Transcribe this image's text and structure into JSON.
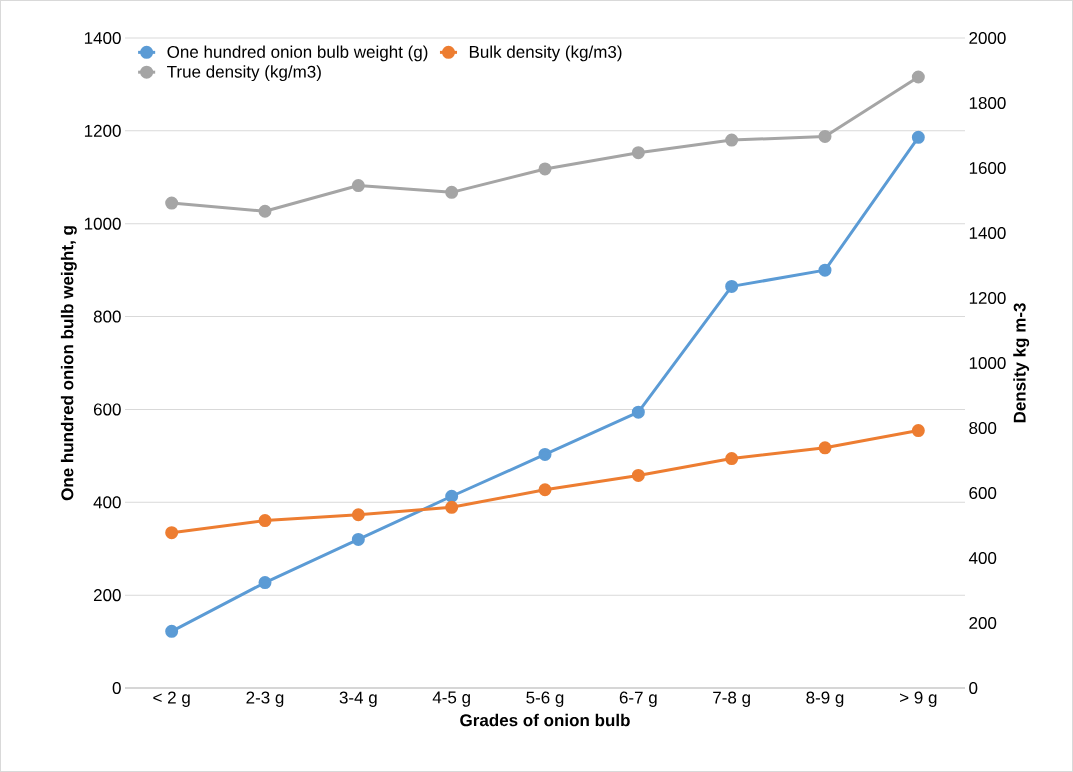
{
  "chart_data": {
    "type": "line",
    "xlabel": "Grades of onion bulb",
    "ylabel": "One hundred onion bulb weight, g",
    "y2label": "Density kg m-3",
    "categories": [
      "< 2 g",
      "2-3 g",
      "3-4 g",
      "4-5 g",
      "5-6 g",
      "6-7 g",
      "7-8 g",
      "8-9 g",
      "> 9 g"
    ],
    "series": [
      {
        "name": "One hundred onion bulb weight (g)",
        "color": "#5b9bd5",
        "values": [
          122,
          227,
          320,
          413,
          503,
          594,
          865,
          900,
          1186
        ]
      },
      {
        "name": "Bulk density   (kg/m3)",
        "color": "#ed7d31",
        "axis": "y2",
        "values": [
          478,
          515,
          533,
          556,
          610,
          654,
          706,
          739,
          792
        ]
      },
      {
        "name": "True density (kg/m3)",
        "color": "#a5a5a5",
        "axis": "y2",
        "values": [
          1492,
          1467,
          1546,
          1525,
          1597,
          1647,
          1686,
          1697,
          1880
        ]
      }
    ],
    "ylim": [
      0,
      1400
    ],
    "yticks": [
      0,
      200,
      400,
      600,
      800,
      1000,
      1200,
      1400
    ],
    "y2lim": [
      0,
      2000
    ],
    "y2ticks": [
      0,
      200,
      400,
      600,
      800,
      1000,
      1200,
      1400,
      1600,
      1800,
      2000
    ],
    "grid": "y",
    "legend": "top left",
    "marker": "circle",
    "line_style": "solid"
  }
}
